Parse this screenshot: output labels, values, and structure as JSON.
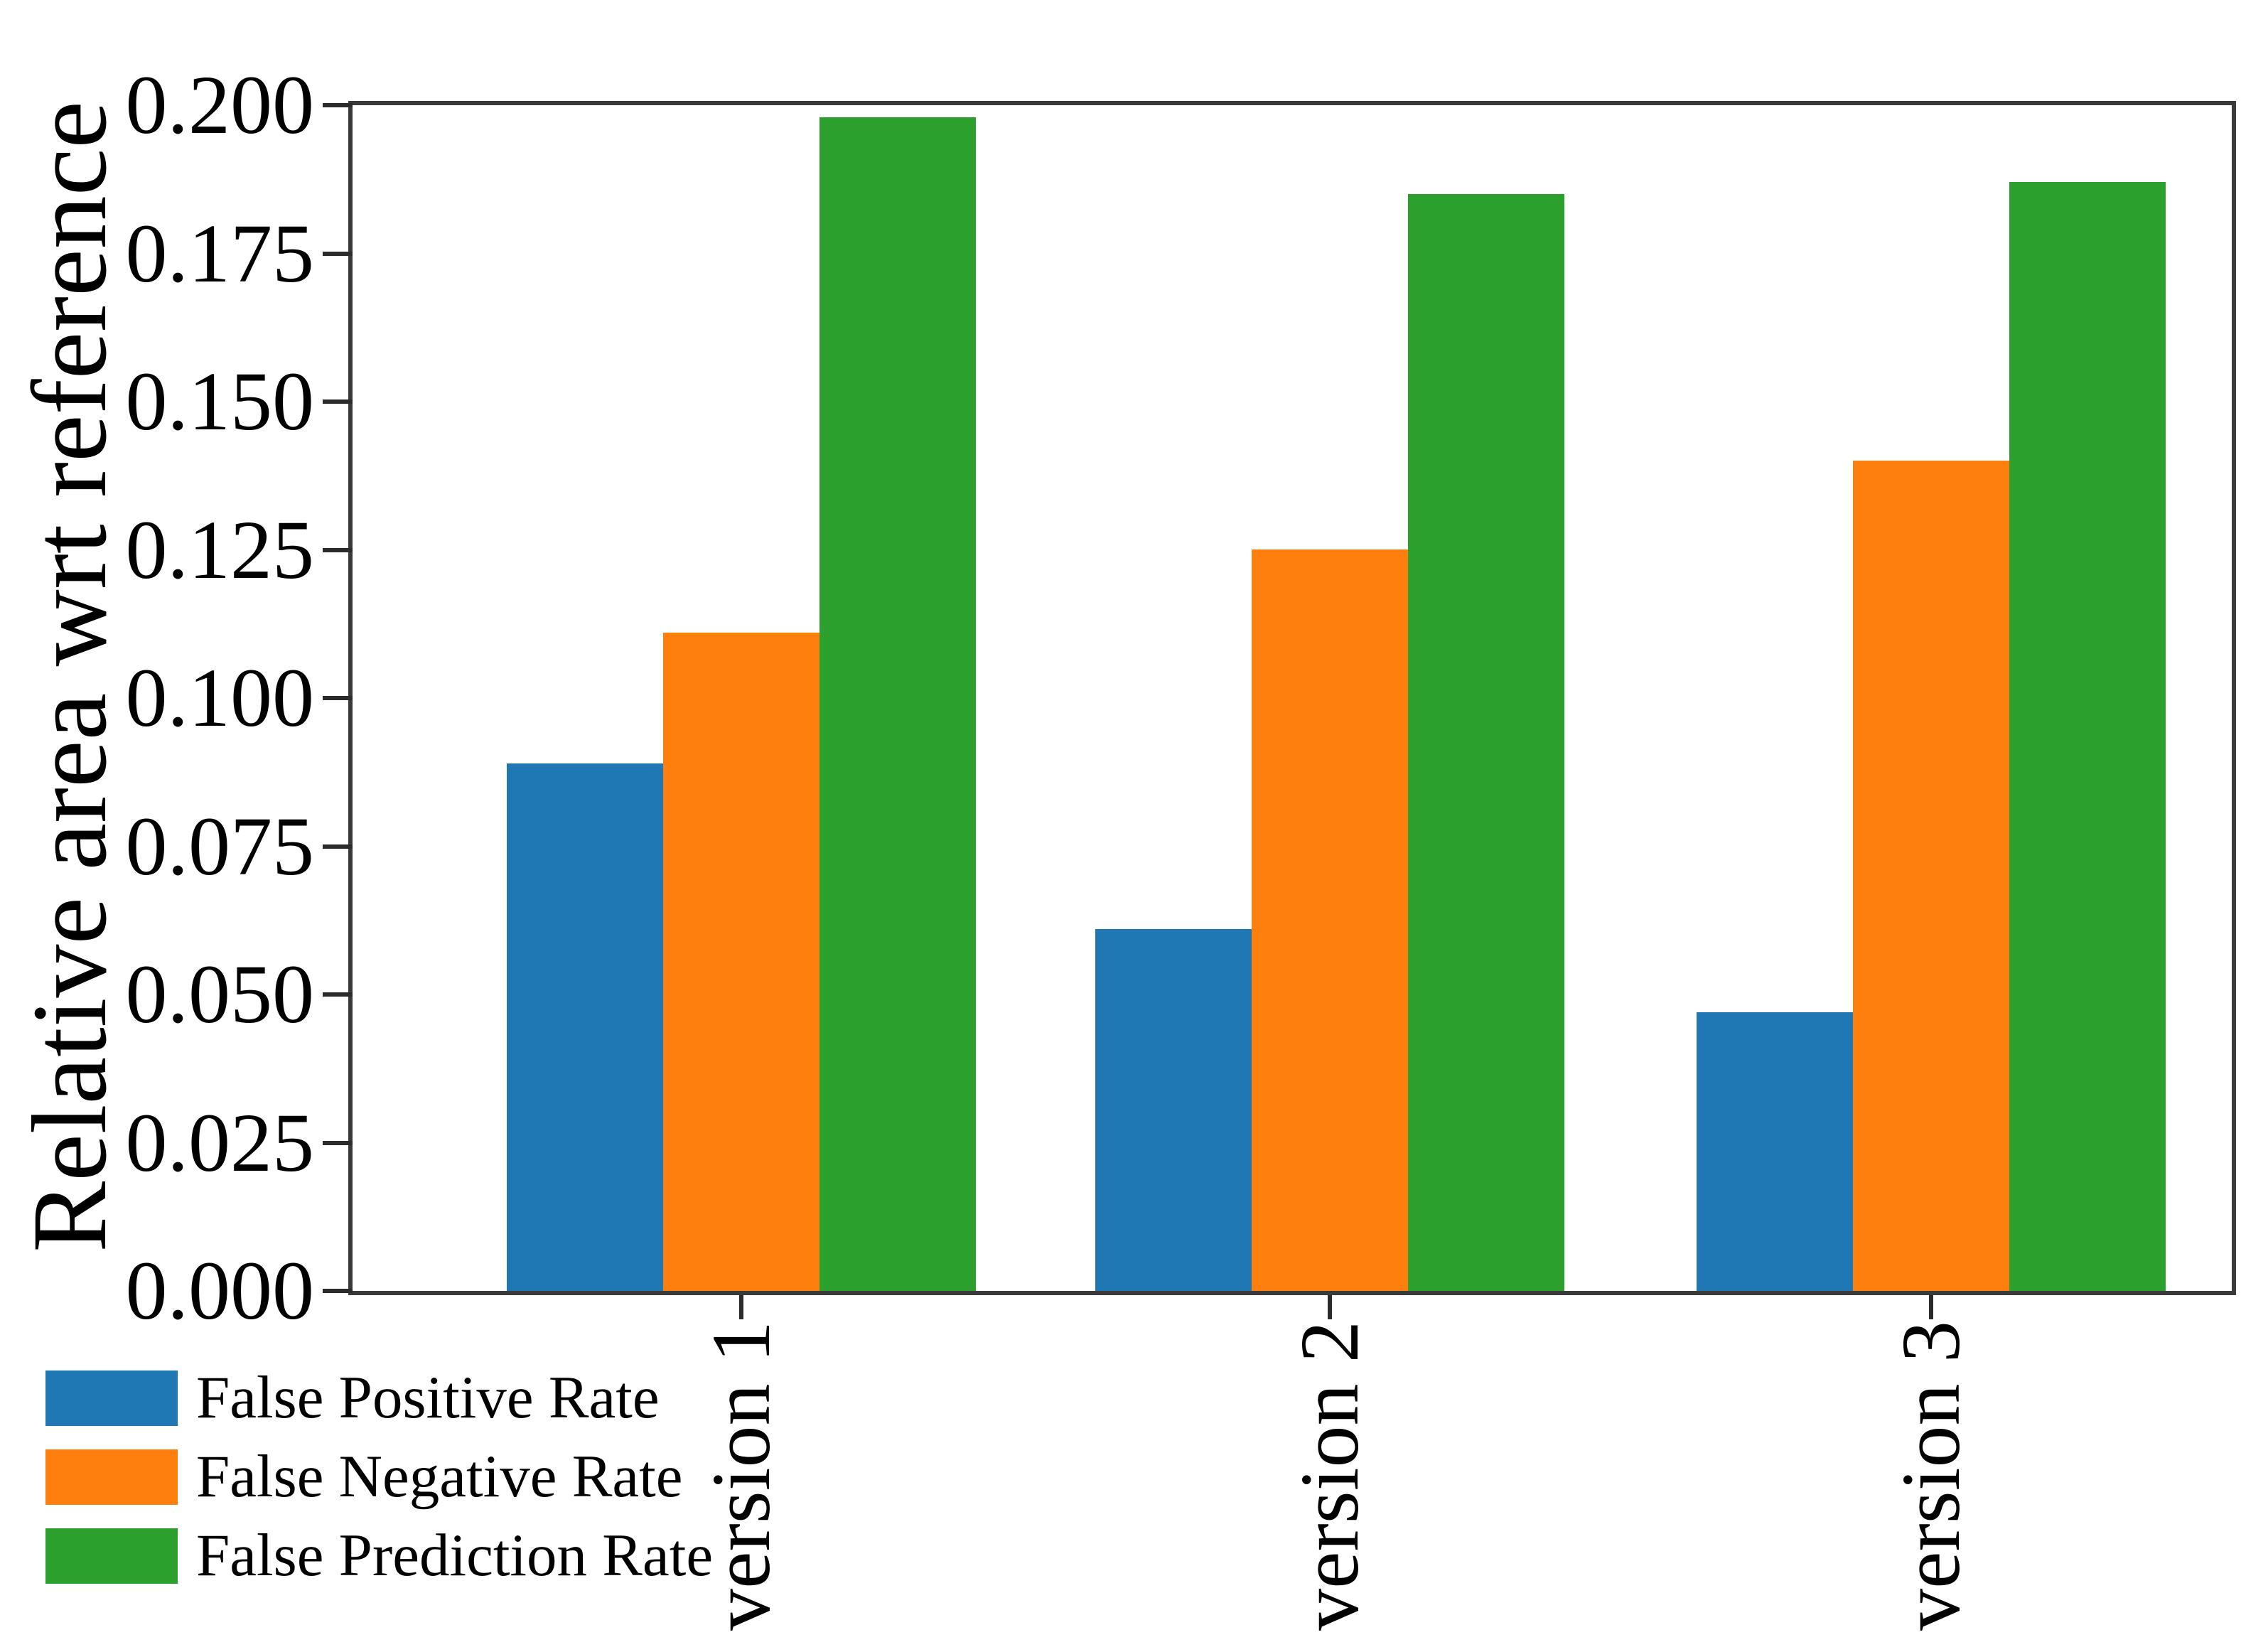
{
  "chart_data": {
    "type": "bar",
    "title": "",
    "xlabel": "",
    "ylabel": "Relative area wrt reference",
    "categories": [
      "version 1",
      "version 2",
      "version 3"
    ],
    "series": [
      {
        "name": "False Positive Rate",
        "color": "#1f77b4",
        "values": [
          0.089,
          0.061,
          0.047
        ]
      },
      {
        "name": "False Negative Rate",
        "color": "#ff7f0e",
        "values": [
          0.111,
          0.125,
          0.14
        ]
      },
      {
        "name": "False Prediction Rate",
        "color": "#2ca02c",
        "values": [
          0.198,
          0.185,
          0.187
        ]
      }
    ],
    "ylim": [
      0,
      0.2
    ],
    "ytick_labels": [
      "0.000",
      "0.025",
      "0.050",
      "0.075",
      "0.100",
      "0.125",
      "0.150",
      "0.175",
      "0.200"
    ],
    "grid": false,
    "legend_position": "bottom-left",
    "axis_color": "#3a3a3a",
    "text_color": "#000000",
    "background_color": "#ffffff"
  }
}
